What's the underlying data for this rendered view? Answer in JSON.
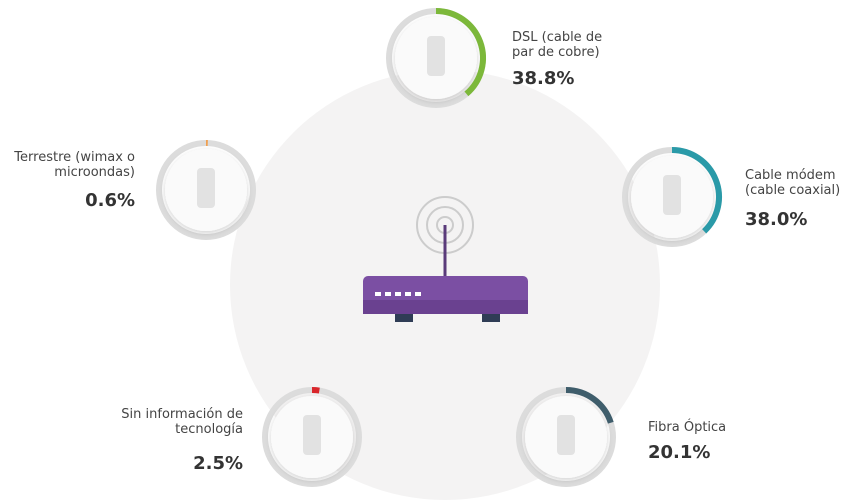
{
  "chart_data": {
    "type": "ring-gauges",
    "categories": [
      "DSL (cable de par de cobre)",
      "Cable módem (cable coaxial)",
      "Fibra Óptica",
      "Sin información de tecnología",
      "Terrestre (wimax o microondas)"
    ],
    "values": [
      38.8,
      38.0,
      20.1,
      2.5,
      0.6
    ],
    "value_labels": [
      "38.8%",
      "38.0%",
      "20.1%",
      "2.5%",
      "0.6%"
    ],
    "colors": [
      "#7cb83a",
      "#2a9aa8",
      "#3f5d6b",
      "#d9262b",
      "#f0a050"
    ],
    "ylim": [
      0,
      100
    ]
  }
}
